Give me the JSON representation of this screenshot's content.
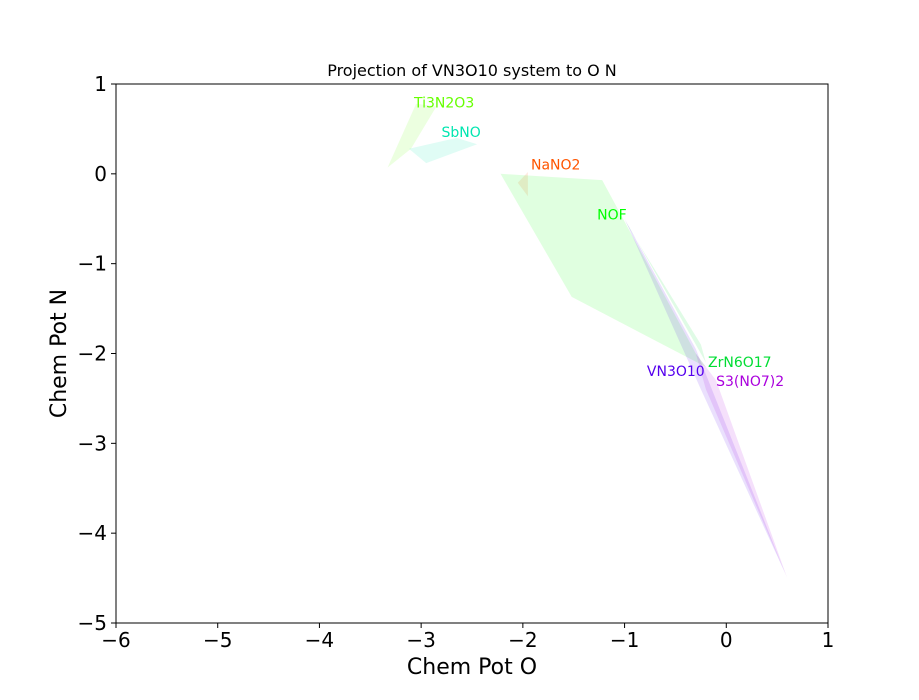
{
  "chart_data": {
    "type": "area",
    "title": "Projection of VN3O10 system to O N",
    "xlabel": "Chem Pot O",
    "ylabel": "Chem Pot N",
    "xlim": [
      -6,
      1
    ],
    "ylim": [
      -5,
      1
    ],
    "xticks": [
      -6,
      -5,
      -4,
      -3,
      -2,
      -1,
      0,
      1
    ],
    "yticks": [
      -5,
      -4,
      -3,
      -2,
      -1,
      0,
      1
    ],
    "xtick_labels": [
      "−6",
      "−5",
      "−4",
      "−3",
      "−2",
      "−1",
      "0",
      "1"
    ],
    "ytick_labels": [
      "−5",
      "−4",
      "−3",
      "−2",
      "−1",
      "0",
      "1"
    ],
    "grid": false,
    "regions": [
      {
        "name": "Ti3N2O3",
        "color": "#66ff00",
        "label_pos": [
          -3.07,
          0.74
        ],
        "polygon": [
          [
            -3.33,
            0.07
          ],
          [
            -3.05,
            0.78
          ],
          [
            -2.85,
            0.75
          ],
          [
            -3.1,
            0.28
          ]
        ]
      },
      {
        "name": "SbNO",
        "color": "#00e6b0",
        "label_pos": [
          -2.8,
          0.41
        ],
        "polygon": [
          [
            -3.12,
            0.28
          ],
          [
            -2.95,
            0.12
          ],
          [
            -2.45,
            0.33
          ],
          [
            -2.65,
            0.4
          ]
        ]
      },
      {
        "name": "NaNO2",
        "color": "#ff5500",
        "label_pos": [
          -1.92,
          0.05
        ],
        "polygon": [
          [
            -2.05,
            -0.1
          ],
          [
            -1.95,
            -0.25
          ],
          [
            -1.95,
            0.02
          ]
        ]
      },
      {
        "name": "NOF",
        "color": "#00ff00",
        "label_pos": [
          -1.27,
          -0.51
        ],
        "polygon": [
          [
            -2.22,
            0.0
          ],
          [
            -1.22,
            -0.07
          ],
          [
            -0.3,
            -2.0
          ],
          [
            -0.2,
            -2.15
          ],
          [
            -1.52,
            -1.37
          ]
        ]
      },
      {
        "name": "ZrN6O17",
        "color": "#00dd33",
        "label_pos": [
          -0.18,
          -2.15
        ],
        "polygon": [
          [
            -1.0,
            -0.52
          ],
          [
            -0.25,
            -1.9
          ],
          [
            -0.2,
            -2.1
          ],
          [
            -0.95,
            -0.6
          ]
        ]
      },
      {
        "name": "VN3O10",
        "color": "#5500ee",
        "label_pos": [
          -0.78,
          -2.25
        ],
        "polygon": [
          [
            -1.0,
            -0.5
          ],
          [
            -0.3,
            -1.95
          ],
          [
            0.58,
            -4.45
          ],
          [
            -0.25,
            -2.4
          ]
        ]
      },
      {
        "name": "S3(NO7)2",
        "color": "#aa00dd",
        "label_pos": [
          -0.1,
          -2.36
        ],
        "polygon": [
          [
            -0.3,
            -2.0
          ],
          [
            -0.1,
            -2.3
          ],
          [
            0.6,
            -4.5
          ],
          [
            -0.2,
            -2.4
          ]
        ]
      }
    ]
  }
}
